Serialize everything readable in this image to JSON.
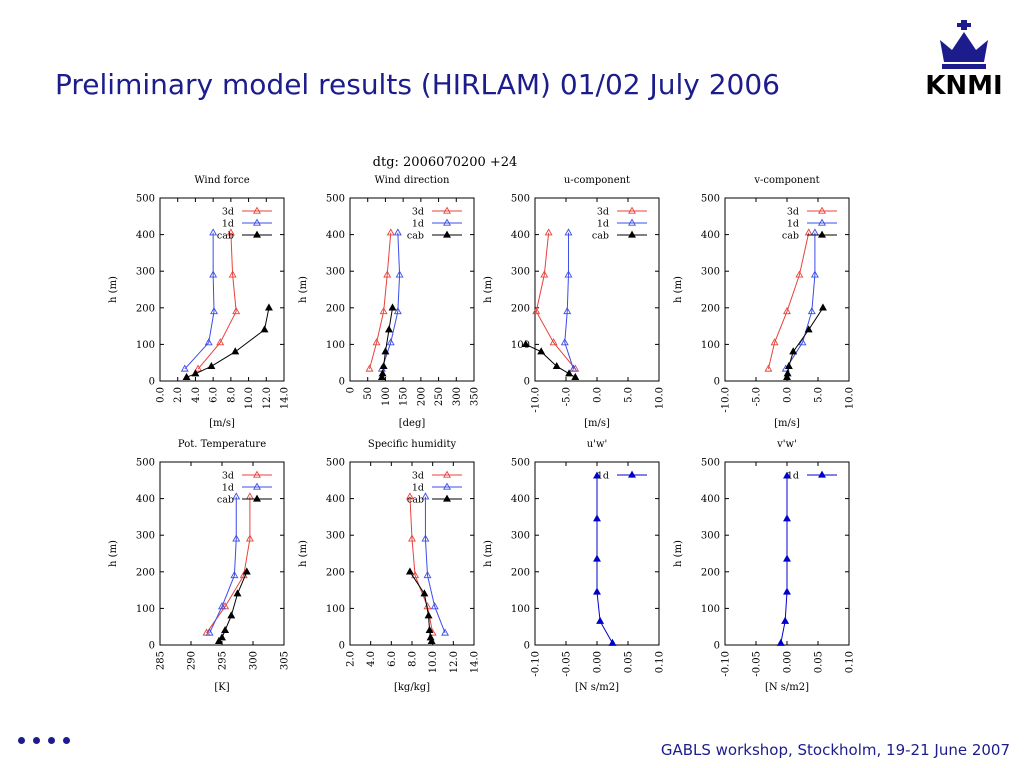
{
  "slide": {
    "title": "Preliminary model results (HIRLAM) 01/02 July 2006",
    "footer": "GABLS workshop, Stockholm, 19-21 June 2007",
    "logo_text": "KNMI"
  },
  "colors": {
    "title": "#1c1c8c",
    "3d": "#e8423c",
    "1d": "#3c4ce8",
    "cab": "#000000",
    "1d_flux": "#0000cc"
  },
  "figure": {
    "header": "dtg: 2006070200 +24"
  },
  "chart_data": [
    {
      "type": "line",
      "title": "Wind force",
      "xlabel": "[m/s]",
      "ylabel": "h (m)",
      "xlim": [
        0,
        14
      ],
      "ylim": [
        0,
        500
      ],
      "xticks": [
        "0.0",
        "2.0",
        "4.0",
        "6.0",
        "8.0",
        "10.0",
        "12.0",
        "14.0"
      ],
      "yticks": [
        "0",
        "100",
        "200",
        "300",
        "400",
        "500"
      ],
      "legend": [
        "3d",
        "1d",
        "cab"
      ],
      "series": [
        {
          "name": "3d",
          "x": [
            4.3,
            6.8,
            8.6,
            8.2,
            8.0
          ],
          "y": [
            33,
            105,
            190,
            290,
            405
          ]
        },
        {
          "name": "1d",
          "x": [
            2.8,
            5.5,
            6.1,
            6.0,
            6.0
          ],
          "y": [
            33,
            105,
            190,
            290,
            405
          ]
        },
        {
          "name": "cab",
          "x": [
            3.0,
            4.0,
            5.8,
            8.5,
            11.8,
            12.3
          ],
          "y": [
            10,
            20,
            40,
            80,
            140,
            200
          ]
        }
      ]
    },
    {
      "type": "line",
      "title": "Wind direction",
      "xlabel": "[deg]",
      "ylabel": "h (m)",
      "xlim": [
        0,
        350
      ],
      "ylim": [
        0,
        500
      ],
      "xticks": [
        "0",
        "50",
        "100",
        "150",
        "200",
        "250",
        "300",
        "350"
      ],
      "yticks": [
        "0",
        "100",
        "200",
        "300",
        "400",
        "500"
      ],
      "legend": [
        "3d",
        "1d",
        "cab"
      ],
      "series": [
        {
          "name": "3d",
          "x": [
            55,
            75,
            95,
            105,
            115
          ],
          "y": [
            33,
            105,
            190,
            290,
            405
          ]
        },
        {
          "name": "1d",
          "x": [
            90,
            115,
            135,
            140,
            135
          ],
          "y": [
            33,
            105,
            190,
            290,
            405
          ]
        },
        {
          "name": "cab",
          "x": [
            90,
            92,
            95,
            100,
            110,
            120
          ],
          "y": [
            10,
            20,
            40,
            80,
            140,
            200
          ]
        }
      ]
    },
    {
      "type": "line",
      "title": "u-component",
      "xlabel": "[m/s]",
      "ylabel": "h (m)",
      "xlim": [
        -10,
        10
      ],
      "ylim": [
        0,
        500
      ],
      "xticks": [
        "-10.0",
        "-5.0",
        "0.0",
        "5.0",
        "10.0"
      ],
      "yticks": [
        "0",
        "100",
        "200",
        "300",
        "400",
        "500"
      ],
      "legend": [
        "3d",
        "1d",
        "cab"
      ],
      "series": [
        {
          "name": "3d",
          "x": [
            -3.5,
            -7.0,
            -9.8,
            -8.5,
            -7.8
          ],
          "y": [
            33,
            105,
            190,
            290,
            405
          ]
        },
        {
          "name": "1d",
          "x": [
            -3.8,
            -5.2,
            -4.8,
            -4.6,
            -4.6
          ],
          "y": [
            33,
            105,
            190,
            290,
            405
          ]
        },
        {
          "name": "cab",
          "x": [
            -3.5,
            -4.5,
            -6.5,
            -9.0,
            -11.5
          ],
          "y": [
            10,
            20,
            40,
            80,
            100
          ]
        }
      ]
    },
    {
      "type": "line",
      "title": "v-component",
      "xlabel": "[m/s]",
      "ylabel": "h (m)",
      "xlim": [
        -10,
        10
      ],
      "ylim": [
        0,
        500
      ],
      "xticks": [
        "-10.0",
        "-5.0",
        "0.0",
        "5.0",
        "10.0"
      ],
      "yticks": [
        "0",
        "100",
        "200",
        "300",
        "400",
        "500"
      ],
      "legend": [
        "3d",
        "1d",
        "cab"
      ],
      "series": [
        {
          "name": "3d",
          "x": [
            -3.0,
            -2.0,
            0.0,
            2.0,
            3.5
          ],
          "y": [
            33,
            105,
            190,
            290,
            405
          ]
        },
        {
          "name": "1d",
          "x": [
            -0.2,
            2.5,
            4.0,
            4.5,
            4.5
          ],
          "y": [
            33,
            105,
            190,
            290,
            405
          ]
        },
        {
          "name": "cab",
          "x": [
            0.0,
            0.1,
            0.3,
            1.0,
            3.5,
            5.8
          ],
          "y": [
            10,
            20,
            40,
            80,
            140,
            200
          ]
        }
      ]
    },
    {
      "type": "line",
      "title": "Pot. Temperature",
      "xlabel": "[K]",
      "ylabel": "h (m)",
      "xlim": [
        285,
        305
      ],
      "ylim": [
        0,
        500
      ],
      "xticks": [
        "285",
        "290",
        "295",
        "300",
        "305"
      ],
      "yticks": [
        "0",
        "100",
        "200",
        "300",
        "400",
        "500"
      ],
      "legend": [
        "3d",
        "1d",
        "cab"
      ],
      "series": [
        {
          "name": "3d",
          "x": [
            292.5,
            295.5,
            298.5,
            299.5,
            299.5
          ],
          "y": [
            33,
            105,
            190,
            290,
            405
          ]
        },
        {
          "name": "1d",
          "x": [
            293.0,
            295.0,
            297.0,
            297.3,
            297.3
          ],
          "y": [
            33,
            105,
            190,
            290,
            405
          ]
        },
        {
          "name": "cab",
          "x": [
            294.5,
            295.0,
            295.5,
            296.5,
            297.5,
            299.0
          ],
          "y": [
            10,
            20,
            40,
            80,
            140,
            200
          ]
        }
      ]
    },
    {
      "type": "line",
      "title": "Specific humidity",
      "xlabel": "[kg/kg]",
      "ylabel": "h (m)",
      "xlim": [
        2,
        14
      ],
      "ylim": [
        0,
        500
      ],
      "xticks": [
        "2.0",
        "4.0",
        "6.0",
        "8.0",
        "10.0",
        "12.0",
        "14.0"
      ],
      "yticks": [
        "0",
        "100",
        "200",
        "300",
        "400",
        "500"
      ],
      "legend": [
        "3d",
        "1d",
        "cab"
      ],
      "series": [
        {
          "name": "3d",
          "x": [
            10.0,
            9.5,
            8.3,
            8.0,
            7.8
          ],
          "y": [
            33,
            105,
            190,
            290,
            405
          ]
        },
        {
          "name": "1d",
          "x": [
            11.2,
            10.2,
            9.5,
            9.3,
            9.3
          ],
          "y": [
            33,
            105,
            190,
            290,
            405
          ]
        },
        {
          "name": "cab",
          "x": [
            9.9,
            9.8,
            9.7,
            9.6,
            9.2,
            7.8
          ],
          "y": [
            10,
            20,
            40,
            80,
            140,
            200
          ]
        }
      ]
    },
    {
      "type": "line",
      "title": "u'w'",
      "xlabel": "[N s/m2]",
      "ylabel": "h (m)",
      "xlim": [
        -0.1,
        0.1
      ],
      "ylim": [
        0,
        500
      ],
      "xticks": [
        "-0.10",
        "-0.05",
        "0.00",
        "0.05",
        "0.10"
      ],
      "yticks": [
        "0",
        "100",
        "200",
        "300",
        "400",
        "500"
      ],
      "legend": [
        "1d"
      ],
      "series": [
        {
          "name": "1d",
          "x": [
            0.025,
            0.005,
            0.0,
            0.0,
            0.0,
            0.0
          ],
          "y": [
            5,
            65,
            145,
            235,
            345,
            462
          ]
        }
      ]
    },
    {
      "type": "line",
      "title": "v'w'",
      "xlabel": "[N s/m2]",
      "ylabel": "h (m)",
      "xlim": [
        -0.1,
        0.1
      ],
      "ylim": [
        0,
        500
      ],
      "xticks": [
        "-0.10",
        "-0.05",
        "0.00",
        "0.05",
        "0.10"
      ],
      "yticks": [
        "0",
        "100",
        "200",
        "300",
        "400",
        "500"
      ],
      "legend": [
        "1d"
      ],
      "series": [
        {
          "name": "1d",
          "x": [
            -0.01,
            -0.003,
            0.0,
            0.0,
            0.0,
            0.0
          ],
          "y": [
            5,
            65,
            145,
            235,
            345,
            462
          ]
        }
      ]
    }
  ]
}
